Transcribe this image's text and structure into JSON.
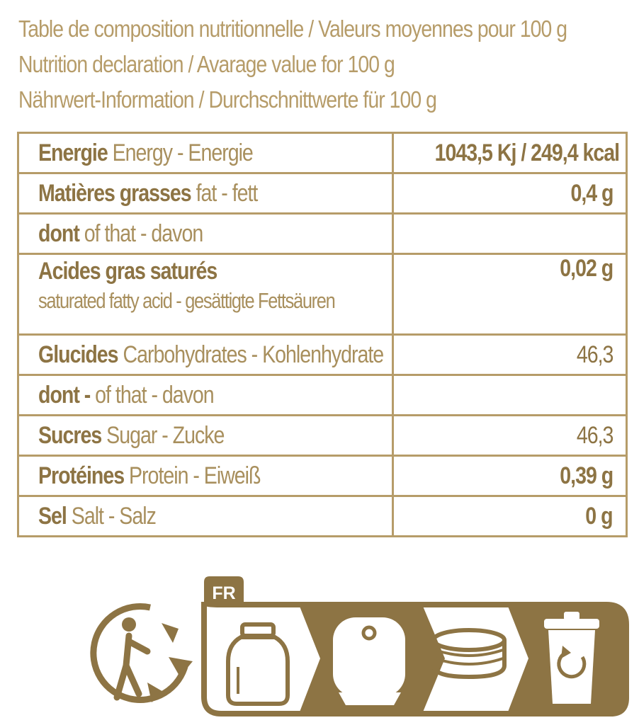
{
  "headings": [
    "Table de composition nutritionnelle / Valeurs moyennes pour 100 g",
    "Nutrition declaration / Avarage value for 100 g",
    "Nährwert-Information / Durchschnittwerte für 100 g"
  ],
  "rows": [
    {
      "bold": "Energie",
      "rest": " Energy - Energie",
      "value": "1043,5 Kj / 249,4 kcal"
    },
    {
      "bold": "Matières grasses",
      "rest": " fat - fett",
      "value": "0,4 g"
    },
    {
      "bold": "dont",
      "rest": " of that - davon",
      "value": ""
    },
    {
      "bold": "Acides gras saturés",
      "rest": "",
      "sub": "saturated fatty acid - gesättigte Fettsäuren",
      "value": "0,02 g"
    },
    {
      "bold": "Glucides",
      "rest": " Carbohydrates - Kohlenhydrate",
      "value": "46,3"
    },
    {
      "bold": "dont -",
      "rest": " of that - davon",
      "value": ""
    },
    {
      "bold": "Sucres",
      "rest": "  Sugar - Zucke",
      "value": "46,3"
    },
    {
      "bold": "Protéines",
      "rest": " Protein - Eiweiß",
      "value": "0,39 g"
    },
    {
      "bold": "Sel",
      "rest": "  Salt - Salz",
      "value": "0 g"
    }
  ],
  "recycling": {
    "country_code": "FR",
    "icons": [
      "tidyman-icon",
      "glass-jar-icon",
      "glass-bin-icon",
      "jar-lid-icon",
      "recycling-bin-icon"
    ]
  },
  "colors": {
    "gold_dark": "#8d7444",
    "gold_light": "#b69c69",
    "gold_mid": "#a88f5d"
  }
}
